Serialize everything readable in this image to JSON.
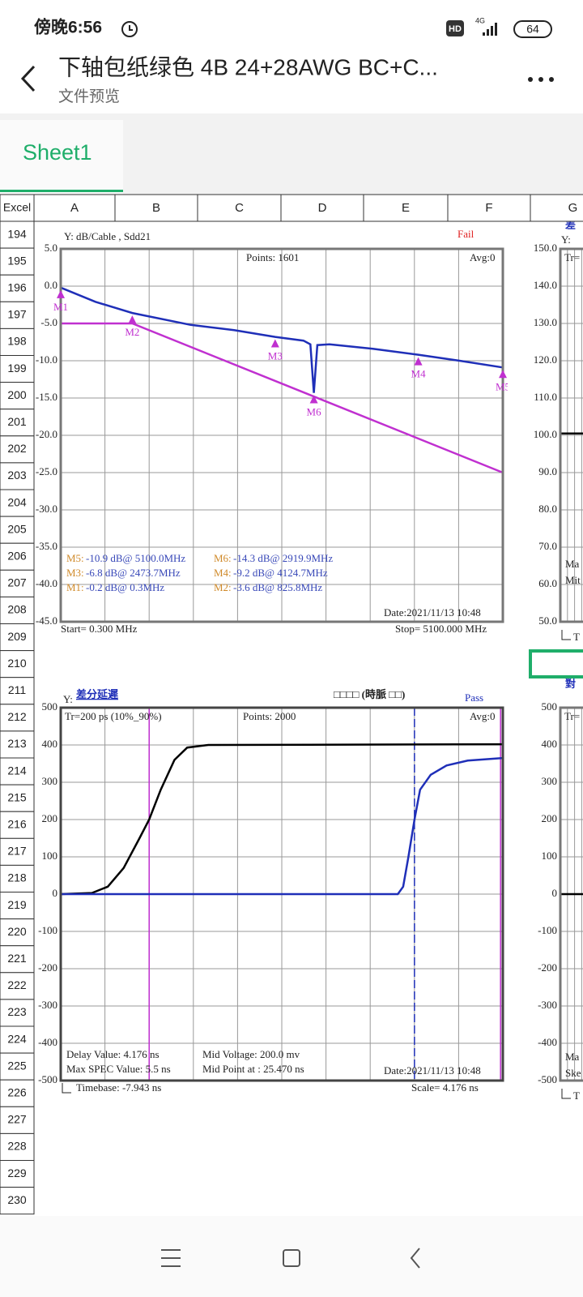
{
  "status_bar": {
    "time": "傍晚6:56",
    "hd": "HD",
    "network": "4G",
    "battery": "64"
  },
  "header": {
    "title": "下轴包纸绿色 4B 24+28AWG BC+C...",
    "subtitle": "文件预览"
  },
  "sheet_tab": "Sheet1",
  "grid": {
    "corner": "Excel",
    "columns": [
      "A",
      "B",
      "C",
      "D",
      "E",
      "F",
      "G"
    ],
    "rows": [
      "194",
      "195",
      "196",
      "197",
      "198",
      "199",
      "200",
      "201",
      "202",
      "203",
      "204",
      "205",
      "206",
      "207",
      "208",
      "209",
      "210",
      "211",
      "212",
      "213",
      "214",
      "215",
      "216",
      "217",
      "218",
      "219",
      "220",
      "221",
      "222",
      "223",
      "224",
      "225",
      "226",
      "227",
      "228",
      "229",
      "230"
    ]
  },
  "charts": [
    {
      "type": "line",
      "title": "Y: dB/Cable , Sdd21",
      "status": "Fail",
      "points": "Points: 1601",
      "avg": "Avg:0",
      "date": "Date:2021/11/13 10:48",
      "start": "Start= 0.300 MHz",
      "stop": "Stop=  5100.000 MHz",
      "xlim": [
        0.3,
        5100
      ],
      "ylim": [
        -45,
        5
      ],
      "yticks": [
        {
          "value": 5,
          "label": "5.0"
        },
        {
          "value": 0,
          "label": "0.0"
        },
        {
          "value": -5,
          "label": "-5.0"
        },
        {
          "value": -10,
          "label": "-10.0"
        },
        {
          "value": -15,
          "label": "-15.0"
        },
        {
          "value": -20,
          "label": "-20.0"
        },
        {
          "value": -25,
          "label": "-25.0"
        },
        {
          "value": -30,
          "label": "-30.0"
        },
        {
          "value": -35,
          "label": "-35.0"
        },
        {
          "value": -40,
          "label": "-40.0"
        },
        {
          "value": -45,
          "label": "-45.0"
        }
      ],
      "series": [
        {
          "color": "#1f2fb8",
          "x": [
            0.3,
            400,
            825.8,
            1500,
            2000,
            2473.7,
            2800,
            2880,
            2919.9,
            2960,
            3100,
            3600,
            4124.7,
            4600,
            5100
          ],
          "values": [
            -0.2,
            -2.1,
            -3.6,
            -5.2,
            -5.9,
            -6.8,
            -7.3,
            -7.8,
            -14.3,
            -7.9,
            -7.8,
            -8.4,
            -9.2,
            -10,
            -10.9
          ]
        },
        {
          "color": "#c030d0",
          "x": [
            0.3,
            825.8,
            5100
          ],
          "values": [
            -5,
            -5,
            -25
          ]
        }
      ],
      "markers": [
        {
          "label": "M1",
          "x": 0.3,
          "value": -0.2
        },
        {
          "label": "M2",
          "x": 825.8,
          "value": -3.6
        },
        {
          "label": "M3",
          "x": 2473.7,
          "value": -6.8
        },
        {
          "label": "M4",
          "x": 4124.7,
          "value": -9.2
        },
        {
          "label": "M5",
          "x": 5100,
          "value": -10.9
        },
        {
          "label": "M6",
          "x": 2919.9,
          "value": -14.3
        }
      ],
      "marker_color": "#c030d0",
      "readouts": [
        {
          "label": "M5:",
          "text": "-10.9 dB@ 5100.0MHz"
        },
        {
          "label": "M6:",
          "text": "-14.3 dB@ 2919.9MHz"
        },
        {
          "label": "M3:",
          "text": "-6.8 dB@ 2473.7MHz"
        },
        {
          "label": "M4:",
          "text": "-9.2 dB@ 4124.7MHz"
        },
        {
          "label": "M1:",
          "text": "-0.2 dB@ 0.3MHz"
        },
        {
          "label": "M2:",
          "text": "-3.6 dB@ 825.8MHz"
        }
      ]
    },
    {
      "type": "line",
      "title_prefix": "Y:",
      "title": "差分延遲",
      "heading": "□□□□ (時脈    □□)",
      "status": "Pass",
      "rise": "Tr=200  ps (10%_90%)",
      "points": "Points:  2000",
      "avg": "Avg:0",
      "info": [
        "Delay Value: 4.176 ns",
        "Mid Voltage: 200.0 mv",
        "Max SPEC Value: 5.5 ns",
        "Mid Point at : 25.470 ns"
      ],
      "date": "Date:2021/11/13 10:48",
      "timebase": "Timebase: -7.943  ns",
      "scale": "Scale=     4.176 ns",
      "xlim": [
        -7.943,
        33.817
      ],
      "ylim": [
        -500,
        500
      ],
      "yticks": [
        500,
        400,
        300,
        200,
        100,
        0,
        -100,
        -200,
        -300,
        -400,
        -500
      ],
      "series": [
        {
          "color": "#000000",
          "x": [
            -7.943,
            -5,
            -3.5,
            -2,
            -0.5,
            0.41,
            1.5,
            2.8,
            4,
            6,
            33.817
          ],
          "values": [
            0,
            3,
            20,
            70,
            150,
            200,
            280,
            360,
            393,
            400,
            402
          ]
        },
        {
          "color": "#1f2fb8",
          "x": [
            -7.943,
            23.9,
            24.4,
            24.9,
            25.47,
            26,
            27,
            28.5,
            30.5,
            33.817
          ],
          "values": [
            0,
            0,
            20,
            100,
            200,
            280,
            320,
            345,
            358,
            365
          ]
        }
      ],
      "cursors": [
        {
          "x": 0.41,
          "color": "#c030d0",
          "dashed": false
        },
        {
          "x": 25.47,
          "color": "#1f2fb8",
          "dashed": true
        },
        {
          "x": 33.6,
          "color": "#c030d0",
          "dashed": false
        }
      ]
    },
    {
      "type": "line",
      "title": "差",
      "title_prefix": "Y:",
      "rise": "Tr=",
      "info": [
        "Ma",
        "Mit"
      ],
      "timebase": "T",
      "ylim": [
        50,
        150
      ],
      "yticks": [
        {
          "value": 150,
          "label": "150.0"
        },
        {
          "value": 140,
          "label": "140.0"
        },
        {
          "value": 130,
          "label": "130.0"
        },
        {
          "value": 120,
          "label": "120.0"
        },
        {
          "value": 110,
          "label": "110.0"
        },
        {
          "value": 100,
          "label": "100.0"
        },
        {
          "value": 90,
          "label": "90.0"
        },
        {
          "value": 80,
          "label": "80.0"
        },
        {
          "value": 70,
          "label": "70.0"
        },
        {
          "value": 60,
          "label": "60.0"
        },
        {
          "value": 50,
          "label": "50.0"
        }
      ],
      "series": [
        {
          "color": "#000000",
          "values": [
            100.5,
            100.5
          ]
        }
      ]
    },
    {
      "type": "line",
      "title": "對",
      "rise": "Tr=",
      "info": [
        "Ma",
        "Ske"
      ],
      "timebase": "T",
      "ylim": [
        -500,
        500
      ],
      "yticks": [
        500,
        400,
        300,
        200,
        100,
        0,
        -100,
        -200,
        -300,
        -400,
        -500
      ],
      "series": [
        {
          "color": "#000000",
          "values": [
            0,
            0
          ]
        }
      ]
    }
  ]
}
